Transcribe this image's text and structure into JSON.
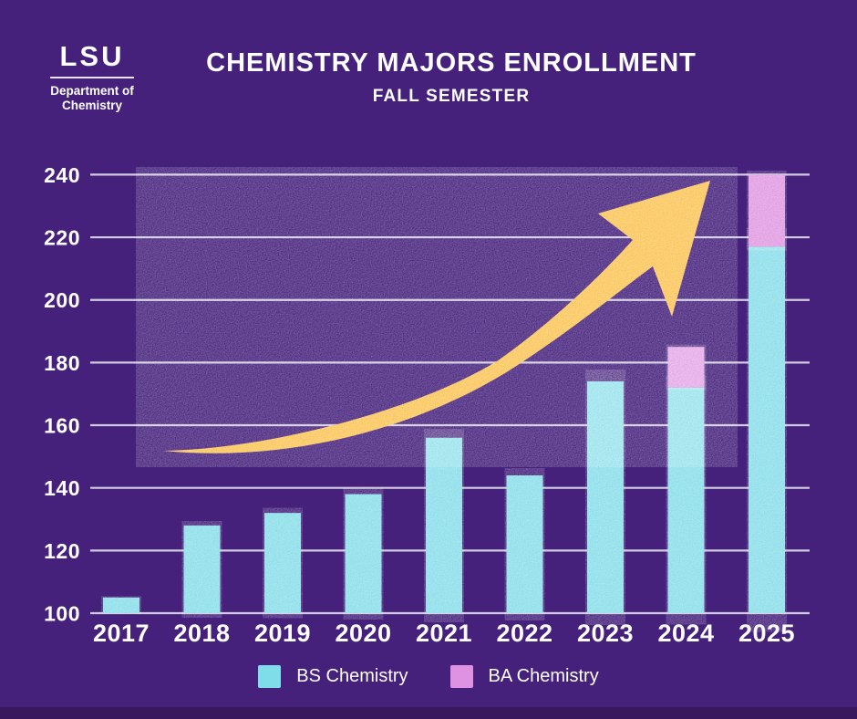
{
  "header": {
    "logo": {
      "acronym": "LSU",
      "dept_line1": "Department of",
      "dept_line2": "Chemistry"
    },
    "title": "CHEMISTRY MAJORS ENROLLMENT",
    "subtitle": "FALL SEMESTER"
  },
  "colors": {
    "background": "#45217C",
    "footer_strip": "#3A185E",
    "bs_fill": "#7EDDE9",
    "ba_fill": "#E092E2",
    "arrow": "#FBC326",
    "gridline": "#D2CCE0",
    "text": "#FFFFFF"
  },
  "chart_data": {
    "type": "bar",
    "stacked": true,
    "title": "CHEMISTRY MAJORS ENROLLMENT",
    "subtitle": "FALL SEMESTER",
    "categories": [
      "2017",
      "2018",
      "2019",
      "2020",
      "2021",
      "2022",
      "2023",
      "2024",
      "2025"
    ],
    "series": [
      {
        "name": "BS Chemistry",
        "color": "#7EDDE9",
        "values": [
          105,
          128,
          132,
          138,
          156,
          144,
          174,
          172,
          217
        ]
      },
      {
        "name": "BA Chemistry",
        "color": "#E092E2",
        "values": [
          0,
          0,
          0,
          0,
          0,
          0,
          0,
          13,
          23
        ]
      }
    ],
    "totals": [
      105,
      128,
      132,
      138,
      156,
      144,
      174,
      185,
      240
    ],
    "ylim": [
      100,
      240
    ],
    "ytick_step": 20,
    "yticks": [
      100,
      120,
      140,
      160,
      180,
      200,
      220,
      240
    ],
    "xlabel": "",
    "ylabel": "",
    "grid": true,
    "legend_position": "bottom",
    "annotations": [
      "large yellow upward trend arrow across plot"
    ]
  },
  "legend": {
    "items": [
      {
        "label": "BS Chemistry"
      },
      {
        "label": "BA Chemistry"
      }
    ]
  }
}
